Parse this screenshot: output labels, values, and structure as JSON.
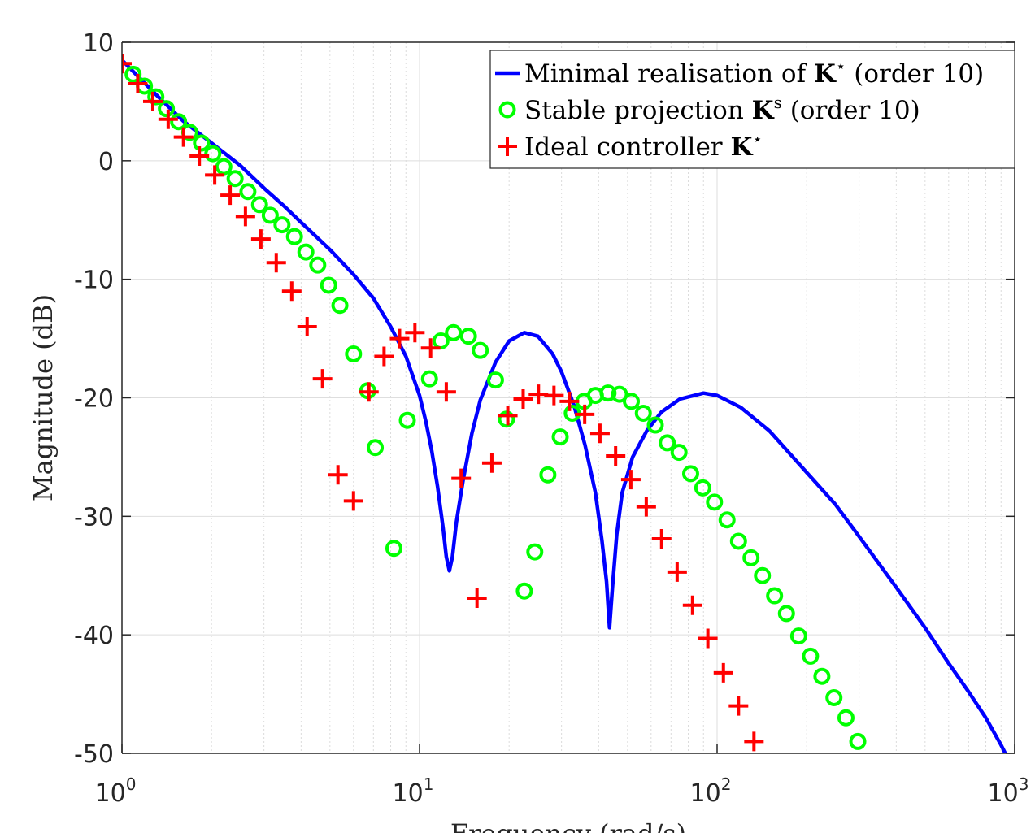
{
  "chart_data": {
    "type": "line",
    "xscale": "log",
    "xlim": [
      1,
      1000
    ],
    "ylim": [
      -50,
      10
    ],
    "xticks": [
      1,
      10,
      100,
      1000
    ],
    "xtick_labels": [
      {
        "base": "10",
        "exp": "0"
      },
      {
        "base": "10",
        "exp": "1"
      },
      {
        "base": "10",
        "exp": "2"
      },
      {
        "base": "10",
        "exp": "3"
      }
    ],
    "yticks": [
      10,
      0,
      -10,
      -20,
      -30,
      -40,
      -50
    ],
    "ytick_labels": [
      "10",
      "0",
      "-10",
      "-20",
      "-30",
      "-40",
      "-50"
    ],
    "xlabel": "Frequency (rad/s)",
    "ylabel": "Magnitude (dB)",
    "grid": true,
    "legend_position": "top-right",
    "legend": [
      {
        "text_before": "Minimal realisation of ",
        "symbol": "K",
        "sup": "⋆",
        "text_after": " (order 10)"
      },
      {
        "text_before": "Stable projection ",
        "symbol": "K",
        "sup": "s",
        "text_after": " (order 10)"
      },
      {
        "text_before": "Ideal controller ",
        "symbol": "K",
        "sup": "⋆",
        "text_after": ""
      }
    ],
    "series": [
      {
        "label_ref": 0,
        "style": "line",
        "color": "#0000ff",
        "points": [
          [
            1,
            8.5
          ],
          [
            1.3,
            5.6
          ],
          [
            1.6,
            3.4
          ],
          [
            2,
            1.5
          ],
          [
            2.5,
            -0.4
          ],
          [
            3,
            -2.3
          ],
          [
            3.5,
            -3.8
          ],
          [
            4,
            -5.2
          ],
          [
            5,
            -7.5
          ],
          [
            6,
            -9.6
          ],
          [
            7,
            -11.6
          ],
          [
            8,
            -14
          ],
          [
            9,
            -16.5
          ],
          [
            10,
            -19.8
          ],
          [
            10.5,
            -22
          ],
          [
            11,
            -24.5
          ],
          [
            11.5,
            -27.5
          ],
          [
            12,
            -31
          ],
          [
            12.3,
            -33.4
          ],
          [
            12.6,
            -34.6
          ],
          [
            12.9,
            -33.4
          ],
          [
            13.3,
            -30.5
          ],
          [
            14,
            -27
          ],
          [
            15,
            -23
          ],
          [
            16,
            -20.2
          ],
          [
            18,
            -17
          ],
          [
            20,
            -15.2
          ],
          [
            22.5,
            -14.5
          ],
          [
            25,
            -14.8
          ],
          [
            28,
            -16.3
          ],
          [
            30,
            -17.8
          ],
          [
            33,
            -20.6
          ],
          [
            36,
            -24
          ],
          [
            39,
            -28
          ],
          [
            41,
            -32
          ],
          [
            42.5,
            -35.5
          ],
          [
            43.5,
            -39.4
          ],
          [
            44.5,
            -36
          ],
          [
            46,
            -31.5
          ],
          [
            48,
            -28
          ],
          [
            52,
            -25
          ],
          [
            58,
            -22.8
          ],
          [
            65,
            -21.2
          ],
          [
            75,
            -20.1
          ],
          [
            90,
            -19.6
          ],
          [
            100,
            -19.8
          ],
          [
            120,
            -20.8
          ],
          [
            150,
            -22.8
          ],
          [
            200,
            -26.3
          ],
          [
            250,
            -29
          ],
          [
            300,
            -31.7
          ],
          [
            400,
            -36
          ],
          [
            500,
            -39.4
          ],
          [
            600,
            -42.4
          ],
          [
            700,
            -44.8
          ],
          [
            800,
            -47
          ],
          [
            900,
            -49.3
          ],
          [
            930,
            -50
          ]
        ]
      },
      {
        "label_ref": 1,
        "style": "circle",
        "color": "#00ff00",
        "points": [
          [
            1.09,
            7.3
          ],
          [
            1.19,
            6.3
          ],
          [
            1.3,
            5.4
          ],
          [
            1.41,
            4.4
          ],
          [
            1.55,
            3.3
          ],
          [
            1.69,
            2.4
          ],
          [
            1.85,
            1.5
          ],
          [
            2.02,
            0.6
          ],
          [
            2.2,
            -0.5
          ],
          [
            2.4,
            -1.5
          ],
          [
            2.65,
            -2.6
          ],
          [
            2.9,
            -3.7
          ],
          [
            3.15,
            -4.6
          ],
          [
            3.45,
            -5.4
          ],
          [
            3.8,
            -6.4
          ],
          [
            4.15,
            -7.7
          ],
          [
            4.55,
            -8.8
          ],
          [
            4.95,
            -10.5
          ],
          [
            5.4,
            -12.2
          ],
          [
            6,
            -16.3
          ],
          [
            6.7,
            -19.4
          ],
          [
            7.1,
            -24.2
          ],
          [
            8.2,
            -32.7
          ],
          [
            9.1,
            -21.9
          ],
          [
            10.8,
            -18.4
          ],
          [
            11.8,
            -15.2
          ],
          [
            13,
            -14.5
          ],
          [
            14.6,
            -14.8
          ],
          [
            16,
            -16
          ],
          [
            18,
            -18.5
          ],
          [
            19.6,
            -21.8
          ],
          [
            22.5,
            -36.3
          ],
          [
            24.4,
            -33
          ],
          [
            27,
            -26.5
          ],
          [
            29.7,
            -23.3
          ],
          [
            32.6,
            -21.3
          ],
          [
            35.7,
            -20.3
          ],
          [
            39,
            -19.8
          ],
          [
            43,
            -19.6
          ],
          [
            47,
            -19.7
          ],
          [
            51.5,
            -20.3
          ],
          [
            56.5,
            -21.3
          ],
          [
            62,
            -22.3
          ],
          [
            68,
            -23.8
          ],
          [
            74.5,
            -24.6
          ],
          [
            81.5,
            -26.4
          ],
          [
            89.5,
            -27.6
          ],
          [
            98,
            -28.8
          ],
          [
            108,
            -30.3
          ],
          [
            118,
            -32.1
          ],
          [
            130,
            -33.5
          ],
          [
            142,
            -35
          ],
          [
            156,
            -36.7
          ],
          [
            171,
            -38.2
          ],
          [
            188,
            -40.1
          ],
          [
            206,
            -41.8
          ],
          [
            225,
            -43.5
          ],
          [
            247,
            -45.3
          ],
          [
            271,
            -47
          ],
          [
            297,
            -49
          ]
        ]
      },
      {
        "label_ref": 2,
        "style": "plus",
        "color": "#ff0000",
        "points": [
          [
            1,
            8.2
          ],
          [
            1.13,
            6.5
          ],
          [
            1.27,
            5.0
          ],
          [
            1.43,
            3.5
          ],
          [
            1.61,
            2.0
          ],
          [
            1.82,
            0.4
          ],
          [
            2.05,
            -1.2
          ],
          [
            2.31,
            -2.9
          ],
          [
            2.6,
            -4.7
          ],
          [
            2.93,
            -6.6
          ],
          [
            3.3,
            -8.6
          ],
          [
            3.72,
            -11.0
          ],
          [
            4.19,
            -14.0
          ],
          [
            4.72,
            -18.4
          ],
          [
            5.32,
            -26.5
          ],
          [
            6,
            -28.7
          ],
          [
            6.76,
            -19.5
          ],
          [
            7.6,
            -16.5
          ],
          [
            8.57,
            -15.0
          ],
          [
            9.65,
            -14.5
          ],
          [
            10.9,
            -15.8
          ],
          [
            12.3,
            -19.5
          ],
          [
            13.8,
            -26.8
          ],
          [
            15.6,
            -36.9
          ],
          [
            17.5,
            -25.5
          ],
          [
            19.8,
            -21.5
          ],
          [
            22.3,
            -20.1
          ],
          [
            25.1,
            -19.7
          ],
          [
            28.3,
            -19.8
          ],
          [
            31.9,
            -20.3
          ],
          [
            35.9,
            -21.4
          ],
          [
            40.4,
            -23.0
          ],
          [
            45.6,
            -24.9
          ],
          [
            51.3,
            -26.9
          ],
          [
            57.8,
            -29.2
          ],
          [
            65.1,
            -31.9
          ],
          [
            73.4,
            -34.7
          ],
          [
            82.7,
            -37.5
          ],
          [
            93.1,
            -40.3
          ],
          [
            105,
            -43.2
          ],
          [
            118,
            -46.0
          ],
          [
            133,
            -49.0
          ]
        ]
      }
    ]
  }
}
